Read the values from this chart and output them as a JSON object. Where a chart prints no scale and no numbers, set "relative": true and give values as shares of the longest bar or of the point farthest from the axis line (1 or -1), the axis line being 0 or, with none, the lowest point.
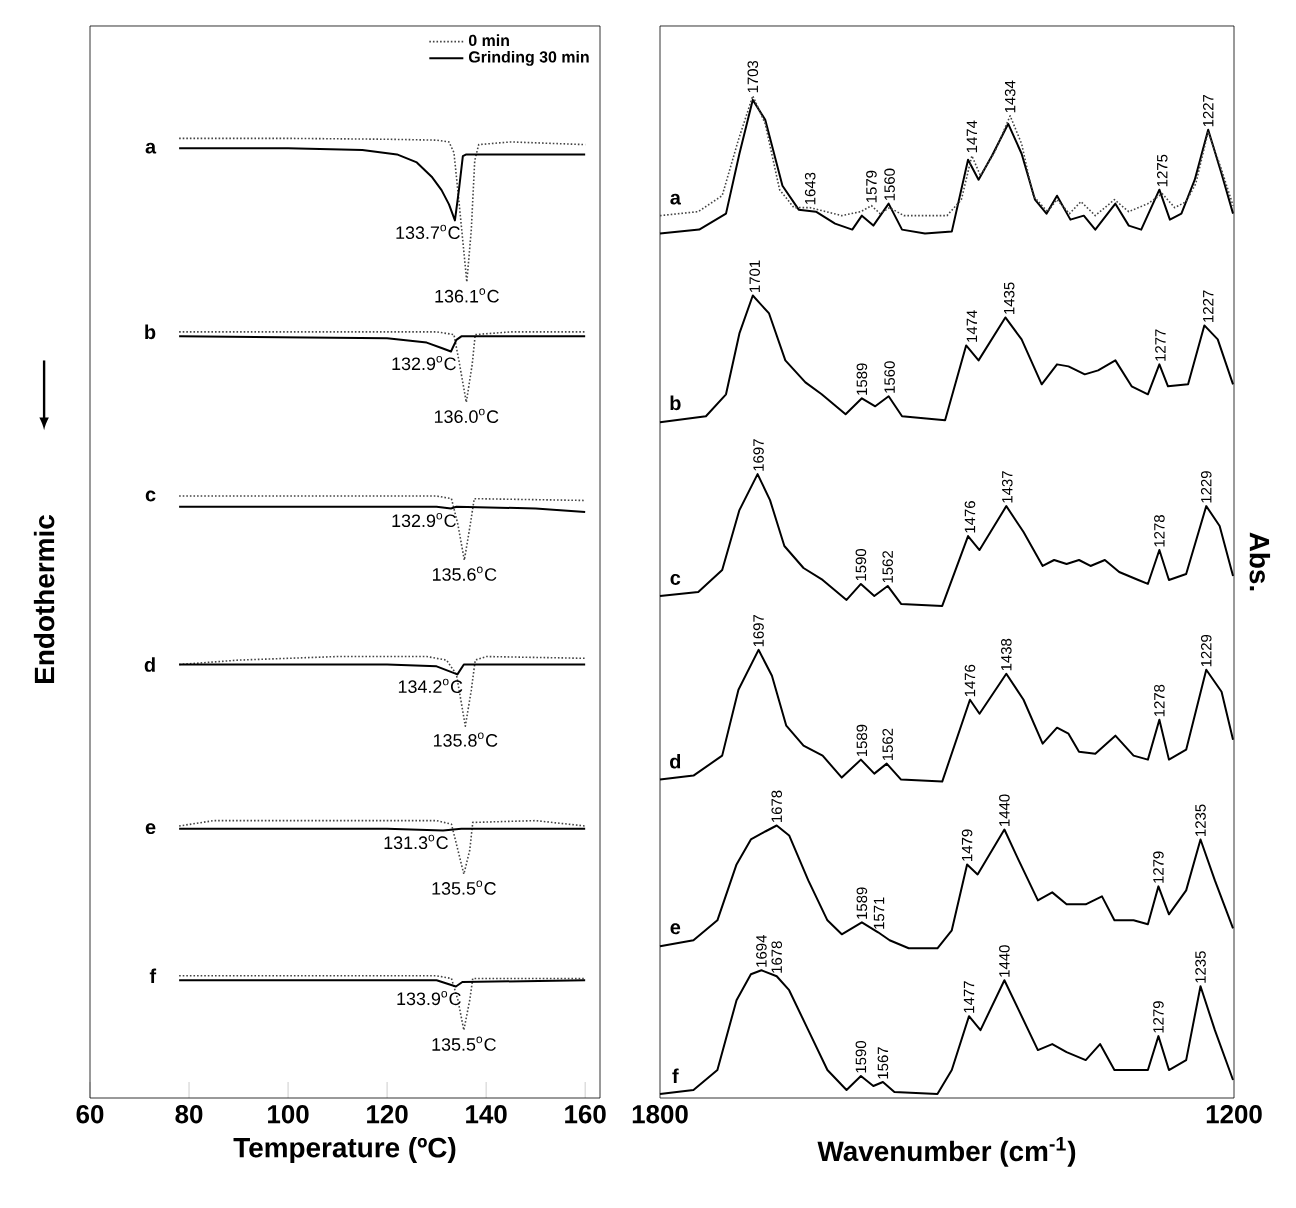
{
  "chart_data": [
    {
      "type": "line",
      "relative": true,
      "xlabel": "Temperature (ºC)",
      "ylabel": "Endothermic",
      "xlim": [
        60,
        163
      ],
      "xticks": [
        60,
        80,
        100,
        120,
        140,
        160
      ],
      "legend": "top right",
      "series": [
        {
          "name": "0 min",
          "color": "#444444",
          "line_style": "dotted",
          "x": [
            78,
            100,
            120,
            130,
            132.5,
            133.5,
            134.5,
            136.1,
            137,
            137.7,
            138.5,
            145,
            160
          ],
          "values": [
            1.0,
            1.0,
            0.999,
            0.998,
            0.996,
            0.984,
            0.93,
            0.839,
            0.897,
            0.975,
            0.993,
            0.996,
            0.993
          ]
        },
        {
          "name": "Grinding 30 min",
          "color": "#000000",
          "line_style": "solid",
          "x": [
            78,
            100,
            115,
            122,
            126,
            129,
            131,
            132.5,
            133.7,
            134.5,
            135.3,
            136,
            145,
            160
          ],
          "values": [
            0.989,
            0.989,
            0.987,
            0.982,
            0.973,
            0.957,
            0.942,
            0.926,
            0.908,
            0.942,
            0.98,
            0.982,
            0.982,
            0.982
          ]
        },
        {
          "color": "#444444",
          "line_style": "dotted",
          "x": [
            78,
            130,
            133.5,
            134.5,
            136,
            137.2,
            137.8,
            145,
            160
          ],
          "values": [
            0.783,
            0.783,
            0.78,
            0.751,
            0.704,
            0.747,
            0.78,
            0.783,
            0.783
          ]
        },
        {
          "color": "#000000",
          "line_style": "solid",
          "x": [
            78,
            120,
            128,
            131,
            132.9,
            134,
            135,
            160
          ],
          "values": [
            0.778,
            0.776,
            0.771,
            0.765,
            0.761,
            0.774,
            0.778,
            0.778
          ]
        },
        {
          "color": "#444444",
          "line_style": "dotted",
          "x": [
            78,
            130,
            133,
            134.3,
            135.6,
            136.8,
            137.6,
            160
          ],
          "values": [
            0.599,
            0.599,
            0.596,
            0.567,
            0.527,
            0.567,
            0.596,
            0.594
          ]
        },
        {
          "color": "#000000",
          "line_style": "solid",
          "x": [
            78,
            120,
            130,
            132.9,
            134,
            150,
            160
          ],
          "values": [
            0.587,
            0.587,
            0.587,
            0.585,
            0.587,
            0.585,
            0.581
          ]
        },
        {
          "color": "#444444",
          "line_style": "dotted",
          "x": [
            78,
            90,
            110,
            128,
            132,
            134,
            135.8,
            137,
            137.8,
            140,
            160
          ],
          "values": [
            0.41,
            0.415,
            0.419,
            0.419,
            0.415,
            0.399,
            0.341,
            0.381,
            0.415,
            0.419,
            0.417
          ]
        },
        {
          "color": "#000000",
          "line_style": "solid",
          "x": [
            78,
            120,
            130,
            134.2,
            135.5,
            160
          ],
          "values": [
            0.41,
            0.41,
            0.408,
            0.399,
            0.41,
            0.41
          ]
        },
        {
          "color": "#444444",
          "line_style": "dotted",
          "x": [
            78,
            85,
            130,
            133,
            134.3,
            135.5,
            136.7,
            137.3,
            150,
            160
          ],
          "values": [
            0.229,
            0.235,
            0.235,
            0.231,
            0.202,
            0.175,
            0.202,
            0.233,
            0.235,
            0.229
          ]
        },
        {
          "color": "#000000",
          "line_style": "solid",
          "x": [
            78,
            120,
            131.3,
            135,
            160
          ],
          "values": [
            0.226,
            0.226,
            0.224,
            0.226,
            0.226
          ]
        },
        {
          "color": "#444444",
          "line_style": "dotted",
          "x": [
            78,
            130,
            133,
            134.3,
            135.5,
            136.7,
            137.3,
            160
          ],
          "values": [
            0.061,
            0.061,
            0.058,
            0.034,
            0,
            0.034,
            0.058,
            0.058
          ]
        },
        {
          "color": "#000000",
          "line_style": "solid",
          "x": [
            78,
            130,
            133.9,
            135.2,
            160
          ],
          "values": [
            0.056,
            0.056,
            0.049,
            0.054,
            0.056
          ]
        }
      ],
      "annotations": [
        {
          "text": "a",
          "x": 78,
          "y": 0.989
        },
        {
          "text": "b",
          "x": 78,
          "y": 0.783
        },
        {
          "text": "c",
          "x": 78,
          "y": 0.599
        },
        {
          "text": "d",
          "x": 78,
          "y": 0.41
        },
        {
          "text": "e",
          "x": 78,
          "y": 0.226
        },
        {
          "text": "f",
          "x": 78,
          "y": 0.061
        },
        {
          "text": "133.7$^{o}$C",
          "x": 133.7,
          "y": 0.908
        },
        {
          "text": "136.1$^{o}$C",
          "x": 136.1,
          "y": 0.839
        },
        {
          "text": "132.9$^{o}$C",
          "x": 132.9,
          "y": 0.761
        },
        {
          "text": "136.0$^{o}$C",
          "x": 136.0,
          "y": 0.704
        },
        {
          "text": "132.9$^{o}$C",
          "x": 132.9,
          "y": 0.585
        },
        {
          "text": "135.6$^{o}$C",
          "x": 135.6,
          "y": 0.527
        },
        {
          "text": "134.2$^{o}$C",
          "x": 134.2,
          "y": 0.399
        },
        {
          "text": "135.8$^{o}$C",
          "x": 135.8,
          "y": 0.341
        },
        {
          "text": "131.3$^{o}$C",
          "x": 131.3,
          "y": 0.224
        },
        {
          "text": "135.5$^{o}$C",
          "x": 135.5,
          "y": 0.175
        },
        {
          "text": "133.9$^{o}$C",
          "x": 133.9,
          "y": 0.049
        },
        {
          "text": "135.5$^{o}$C",
          "x": 135.5,
          "y": 0
        }
      ]
    },
    {
      "type": "line",
      "relative": true,
      "xlabel": "Wavenumber (cm$^{-1}$)",
      "ylabel": "Abs.",
      "xlim": [
        1800,
        1200
      ],
      "xticks": [
        1800,
        1200
      ],
      "series": [
        {
          "color": "#000000",
          "line_style": "solid",
          "x": [
            1800,
            1759,
            1731,
            1717,
            1703,
            1690,
            1672,
            1655,
            1637,
            1617,
            1599,
            1589,
            1577,
            1561,
            1547,
            1523,
            1495,
            1478,
            1467,
            1453,
            1436,
            1422,
            1408,
            1396,
            1385,
            1371,
            1357,
            1345,
            1324,
            1310,
            1297,
            1278,
            1267,
            1255,
            1241,
            1227,
            1213,
            1201
          ],
          "values": [
            0.862,
            0.866,
            0.882,
            0.942,
            0.996,
            0.976,
            0.91,
            0.886,
            0.884,
            0.872,
            0.866,
            0.88,
            0.87,
            0.892,
            0.866,
            0.862,
            0.864,
            0.936,
            0.916,
            0.94,
            0.972,
            0.942,
            0.896,
            0.882,
            0.9,
            0.876,
            0.88,
            0.866,
            0.892,
            0.87,
            0.866,
            0.906,
            0.876,
            0.882,
            0.916,
            0.966,
            0.922,
            0.882
          ]
        },
        {
          "color": "#444444",
          "line_style": "dotted",
          "x": [
            1800,
            1760,
            1735,
            1718,
            1703,
            1690,
            1675,
            1660,
            1643,
            1610,
            1590,
            1579,
            1570,
            1560,
            1545,
            1500,
            1485,
            1474,
            1465,
            1450,
            1434,
            1422,
            1410,
            1395,
            1385,
            1372,
            1360,
            1345,
            1325,
            1310,
            1290,
            1275,
            1262,
            1250,
            1240,
            1227,
            1213,
            1201
          ],
          "values": [
            0.88,
            0.884,
            0.9,
            0.956,
            1.0,
            0.972,
            0.906,
            0.888,
            0.888,
            0.88,
            0.884,
            0.89,
            0.882,
            0.888,
            0.88,
            0.88,
            0.896,
            0.94,
            0.92,
            0.944,
            0.98,
            0.952,
            0.9,
            0.884,
            0.896,
            0.882,
            0.894,
            0.88,
            0.896,
            0.884,
            0.892,
            0.902,
            0.888,
            0.894,
            0.912,
            0.964,
            0.926,
            0.89
          ]
        },
        {
          "color": "#000000",
          "line_style": "solid",
          "x": [
            1800,
            1752,
            1731,
            1717,
            1703,
            1686,
            1669,
            1648,
            1631,
            1606,
            1589,
            1575,
            1561,
            1547,
            1502,
            1480,
            1467,
            1439,
            1422,
            1401,
            1385,
            1373,
            1356,
            1342,
            1324,
            1307,
            1290,
            1278,
            1269,
            1248,
            1231,
            1217,
            1201
          ],
          "values": [
            0.673,
            0.679,
            0.701,
            0.762,
            0.8,
            0.782,
            0.735,
            0.713,
            0.701,
            0.681,
            0.697,
            0.689,
            0.699,
            0.679,
            0.675,
            0.75,
            0.735,
            0.778,
            0.756,
            0.711,
            0.731,
            0.729,
            0.721,
            0.725,
            0.735,
            0.709,
            0.701,
            0.731,
            0.709,
            0.711,
            0.77,
            0.756,
            0.711
          ]
        },
        {
          "color": "#000000",
          "line_style": "solid",
          "x": [
            1800,
            1760,
            1735,
            1717,
            1698,
            1685,
            1670,
            1650,
            1630,
            1605,
            1590,
            1576,
            1562,
            1548,
            1505,
            1478,
            1466,
            1438,
            1420,
            1400,
            1388,
            1375,
            1362,
            1350,
            1335,
            1320,
            1300,
            1290,
            1278,
            1268,
            1250,
            1229,
            1215,
            1201
          ],
          "values": [
            0.499,
            0.503,
            0.525,
            0.585,
            0.621,
            0.595,
            0.549,
            0.527,
            0.515,
            0.495,
            0.511,
            0.499,
            0.509,
            0.491,
            0.489,
            0.559,
            0.545,
            0.589,
            0.563,
            0.529,
            0.535,
            0.531,
            0.535,
            0.529,
            0.535,
            0.523,
            0.515,
            0.511,
            0.545,
            0.515,
            0.521,
            0.589,
            0.569,
            0.519
          ]
        },
        {
          "color": "#000000",
          "line_style": "solid",
          "x": [
            1800,
            1765,
            1735,
            1718,
            1697,
            1683,
            1668,
            1650,
            1630,
            1610,
            1590,
            1576,
            1563,
            1548,
            1505,
            1476,
            1466,
            1438,
            1420,
            1400,
            1385,
            1373,
            1362,
            1345,
            1324,
            1305,
            1290,
            1278,
            1268,
            1250,
            1229,
            1213,
            1201
          ],
          "values": [
            0.315,
            0.319,
            0.339,
            0.405,
            0.445,
            0.419,
            0.369,
            0.349,
            0.339,
            0.317,
            0.335,
            0.321,
            0.331,
            0.315,
            0.313,
            0.395,
            0.381,
            0.421,
            0.395,
            0.351,
            0.367,
            0.361,
            0.343,
            0.341,
            0.359,
            0.339,
            0.335,
            0.375,
            0.335,
            0.345,
            0.425,
            0.403,
            0.355
          ]
        },
        {
          "color": "#000000",
          "line_style": "solid",
          "x": [
            1800,
            1765,
            1740,
            1720,
            1705,
            1690,
            1678,
            1665,
            1645,
            1625,
            1610,
            1589,
            1572,
            1560,
            1540,
            1510,
            1495,
            1479,
            1468,
            1440,
            1425,
            1405,
            1390,
            1375,
            1355,
            1338,
            1325,
            1305,
            1290,
            1279,
            1268,
            1250,
            1235,
            1220,
            1201
          ],
          "values": [
            0.148,
            0.154,
            0.174,
            0.23,
            0.255,
            0.263,
            0.269,
            0.259,
            0.214,
            0.174,
            0.16,
            0.172,
            0.162,
            0.154,
            0.146,
            0.146,
            0.164,
            0.23,
            0.22,
            0.265,
            0.234,
            0.194,
            0.202,
            0.19,
            0.19,
            0.198,
            0.174,
            0.174,
            0.17,
            0.208,
            0.18,
            0.204,
            0.255,
            0.214,
            0.166
          ]
        },
        {
          "color": "#000000",
          "line_style": "solid",
          "x": [
            1800,
            1765,
            1740,
            1720,
            1705,
            1694,
            1678,
            1665,
            1645,
            1625,
            1605,
            1590,
            1577,
            1567,
            1555,
            1510,
            1495,
            1477,
            1465,
            1440,
            1425,
            1405,
            1390,
            1375,
            1355,
            1340,
            1325,
            1300,
            1290,
            1279,
            1268,
            1250,
            1235,
            1220,
            1201
          ],
          "values": [
            0,
            0.004,
            0.024,
            0.094,
            0.12,
            0.124,
            0.118,
            0.104,
            0.064,
            0.024,
            0.004,
            0.018,
            0.008,
            0.012,
            0.002,
            0,
            0.024,
            0.078,
            0.064,
            0.114,
            0.084,
            0.044,
            0.05,
            0.042,
            0.034,
            0.05,
            0.024,
            0.024,
            0.024,
            0.058,
            0.024,
            0.034,
            0.108,
            0.064,
            0.014
          ]
        }
      ],
      "annotations": [
        {
          "text": "a",
          "x": 1784,
          "y": 0.882
        },
        {
          "text": "b",
          "x": 1784,
          "y": 0.676
        },
        {
          "text": "c",
          "x": 1784,
          "y": 0.501
        },
        {
          "text": "d",
          "x": 1784,
          "y": 0.317
        },
        {
          "text": "e",
          "x": 1784,
          "y": 0.151
        },
        {
          "text": "f",
          "x": 1784,
          "y": 0.002
        },
        {
          "text": "1703",
          "x": 1703,
          "y": 1.0
        },
        {
          "text": "1643",
          "x": 1643,
          "y": 0.888
        },
        {
          "text": "1579",
          "x": 1579,
          "y": 0.89
        },
        {
          "text": "1560",
          "x": 1560,
          "y": 0.892
        },
        {
          "text": "1474",
          "x": 1474,
          "y": 0.94
        },
        {
          "text": "1434",
          "x": 1434,
          "y": 0.98
        },
        {
          "text": "1275",
          "x": 1275,
          "y": 0.906
        },
        {
          "text": "1227",
          "x": 1227,
          "y": 0.966
        },
        {
          "text": "1701",
          "x": 1701,
          "y": 0.8
        },
        {
          "text": "1589",
          "x": 1589,
          "y": 0.697
        },
        {
          "text": "1560",
          "x": 1560,
          "y": 0.699
        },
        {
          "text": "1474",
          "x": 1474,
          "y": 0.75
        },
        {
          "text": "1435",
          "x": 1435,
          "y": 0.778
        },
        {
          "text": "1277",
          "x": 1277,
          "y": 0.731
        },
        {
          "text": "1227",
          "x": 1227,
          "y": 0.77
        },
        {
          "text": "1697",
          "x": 1697,
          "y": 0.621
        },
        {
          "text": "1590",
          "x": 1590,
          "y": 0.511
        },
        {
          "text": "1562",
          "x": 1562,
          "y": 0.509
        },
        {
          "text": "1476",
          "x": 1476,
          "y": 0.559
        },
        {
          "text": "1437",
          "x": 1437,
          "y": 0.589
        },
        {
          "text": "1278",
          "x": 1278,
          "y": 0.545
        },
        {
          "text": "1229",
          "x": 1229,
          "y": 0.589
        },
        {
          "text": "1697",
          "x": 1697,
          "y": 0.445
        },
        {
          "text": "1589",
          "x": 1589,
          "y": 0.335
        },
        {
          "text": "1562",
          "x": 1562,
          "y": 0.331
        },
        {
          "text": "1476",
          "x": 1476,
          "y": 0.395
        },
        {
          "text": "1438",
          "x": 1438,
          "y": 0.421
        },
        {
          "text": "1278",
          "x": 1278,
          "y": 0.375
        },
        {
          "text": "1229",
          "x": 1229,
          "y": 0.425
        },
        {
          "text": "1678",
          "x": 1678,
          "y": 0.269
        },
        {
          "text": "1589",
          "x": 1589,
          "y": 0.172
        },
        {
          "text": "1571",
          "x": 1571,
          "y": 0.162
        },
        {
          "text": "1479",
          "x": 1479,
          "y": 0.23
        },
        {
          "text": "1440",
          "x": 1440,
          "y": 0.265
        },
        {
          "text": "1279",
          "x": 1279,
          "y": 0.208
        },
        {
          "text": "1235",
          "x": 1235,
          "y": 0.255
        },
        {
          "text": "1694",
          "x": 1694,
          "y": 0.124
        },
        {
          "text": "1678",
          "x": 1678,
          "y": 0.118
        },
        {
          "text": "1590",
          "x": 1590,
          "y": 0.018
        },
        {
          "text": "1567",
          "x": 1567,
          "y": 0.012
        },
        {
          "text": "1477",
          "x": 1477,
          "y": 0.078
        },
        {
          "text": "1440",
          "x": 1440,
          "y": 0.114
        },
        {
          "text": "1279",
          "x": 1279,
          "y": 0.058
        },
        {
          "text": "1235",
          "x": 1235,
          "y": 0.108
        }
      ]
    }
  ]
}
